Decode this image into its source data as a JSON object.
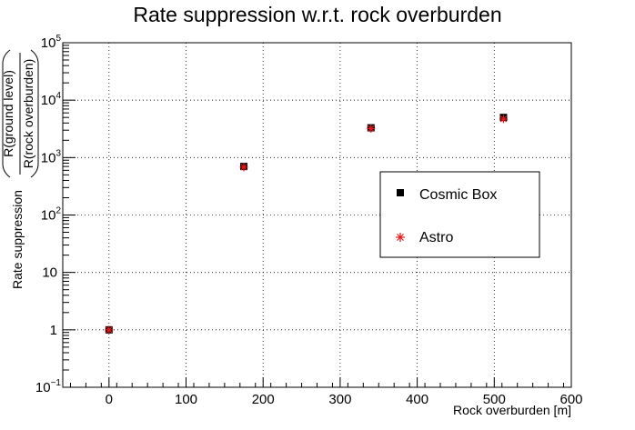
{
  "chart_data": {
    "type": "scatter",
    "title": "Rate suppression w.r.t. rock overburden",
    "xlabel": "Rock overburden [m]",
    "ylabel": {
      "prefix": "Rate suppression",
      "numerator": "R(ground level)",
      "denominator": "R(rock overburden)"
    },
    "xlim": [
      -60,
      600
    ],
    "ylim": [
      0.1,
      100000
    ],
    "yscale": "log",
    "grid": true,
    "legend_position": "right",
    "x_ticks": [
      0,
      100,
      200,
      300,
      400,
      500,
      600
    ],
    "y_ticks": [
      {
        "value": 0.1,
        "base": "10",
        "exp": "−1"
      },
      {
        "value": 1,
        "base": "1",
        "exp": ""
      },
      {
        "value": 10,
        "base": "10",
        "exp": ""
      },
      {
        "value": 100,
        "base": "10",
        "exp": "2"
      },
      {
        "value": 1000,
        "base": "10",
        "exp": "3"
      },
      {
        "value": 10000,
        "base": "10",
        "exp": "4"
      },
      {
        "value": 100000,
        "base": "10",
        "exp": "5"
      }
    ],
    "series": [
      {
        "name": "Cosmic Box",
        "marker": "square",
        "color": "#000000",
        "points": [
          {
            "x": 0,
            "y": 1,
            "xerr": 2
          },
          {
            "x": 175,
            "y": 700,
            "xerr": 4
          },
          {
            "x": 340,
            "y": 3300,
            "xerr": 5
          },
          {
            "x": 512,
            "y": 5000,
            "xerr": 4
          }
        ]
      },
      {
        "name": "Astro",
        "marker": "asterisk",
        "color": "#e31a1c",
        "points": [
          {
            "x": 0,
            "y": 1
          },
          {
            "x": 175,
            "y": 680
          },
          {
            "x": 340,
            "y": 3200
          },
          {
            "x": 512,
            "y": 4700
          }
        ]
      }
    ]
  }
}
